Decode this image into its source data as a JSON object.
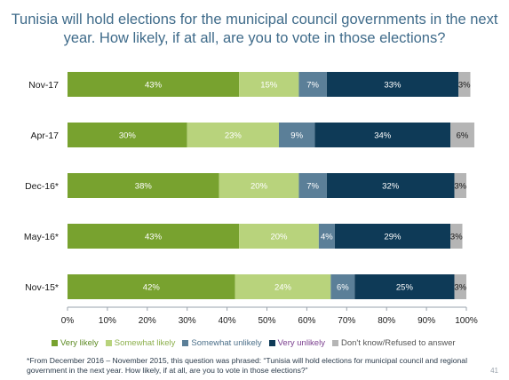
{
  "title": "Tunisia will hold elections for the municipal council governments in the next year. How likely, if at all, are you to vote in those elections?",
  "footnote": "*From December 2016 – November 2015, this question was phrased: “Tunisia will hold elections for municipal council and regional government in the next year. How likely, if at all, are you to vote in those elections?”",
  "page_number": "41",
  "chart_data": {
    "type": "bar",
    "orientation": "horizontal",
    "stacked": true,
    "categories": [
      "Nov-17",
      "Apr-17",
      "Dec-16*",
      "May-16*",
      "Nov-15*"
    ],
    "series": [
      {
        "name": "Very likely",
        "color": "#78a22f",
        "label_color": "#ffffff",
        "values": [
          43,
          30,
          38,
          43,
          42
        ],
        "labels": [
          "43%",
          "30%",
          "38%",
          "43%",
          "42%"
        ]
      },
      {
        "name": "Somewhat likely",
        "color": "#b8d37c",
        "label_color": "#ffffff",
        "values": [
          15,
          23,
          20,
          20,
          24
        ],
        "labels": [
          "15%",
          "23%",
          "20%",
          "20%",
          "24%"
        ]
      },
      {
        "name": "Somewhat unlikely",
        "color": "#5b7f98",
        "label_color": "#ffffff",
        "values": [
          7,
          9,
          7,
          4,
          6
        ],
        "labels": [
          "7%",
          "9%",
          "7%",
          "4%",
          "6%"
        ]
      },
      {
        "name": "Very unlikely",
        "color": "#0e3a57",
        "label_color": "#ffffff",
        "values": [
          33,
          34,
          32,
          29,
          25
        ],
        "labels": [
          "33%",
          "34%",
          "32%",
          "29%",
          "25%"
        ]
      },
      {
        "name": "Don't know/Refused to answer",
        "color": "#b5b5b5",
        "label_color": "#1a1a1a",
        "values": [
          3,
          6,
          3,
          3,
          3
        ],
        "labels": [
          "3%",
          "6%",
          "3%",
          "3%",
          "3%"
        ]
      }
    ],
    "legend_text_colors": [
      "#5c8a22",
      "#8db04d",
      "#4b6f89",
      "#7a3e8e",
      "#555555"
    ],
    "xticks": [
      "0%",
      "10%",
      "20%",
      "30%",
      "40%",
      "50%",
      "60%",
      "70%",
      "80%",
      "90%",
      "100%"
    ],
    "xlim": [
      0,
      100
    ],
    "legend_position": "bottom",
    "grid": false
  }
}
